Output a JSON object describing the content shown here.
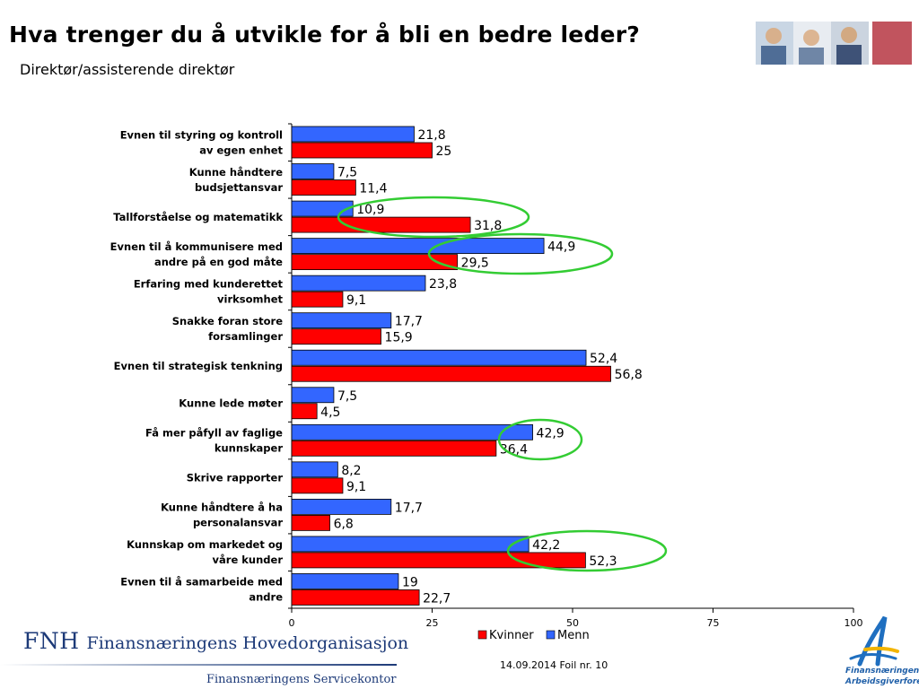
{
  "header": {
    "title": "Hva trenger du å utvikle for å bli en bedre leder?",
    "subtitle": "Direktør/assisterende direktør"
  },
  "chart_data": {
    "type": "bar",
    "orientation": "horizontal",
    "categories": [
      [
        "Evnen til styring og kontroll",
        "av egen enhet"
      ],
      [
        "Kunne håndtere",
        "budsjettansvar"
      ],
      [
        "Tallforståelse og matematikk"
      ],
      [
        "Evnen til å kommunisere med",
        "andre på en god måte"
      ],
      [
        "Erfaring med kunderettet",
        "virksomhet"
      ],
      [
        "Snakke foran store",
        "forsamlinger"
      ],
      [
        "Evnen til strategisk tenkning"
      ],
      [
        "Kunne lede møter"
      ],
      [
        "Få mer påfyll av faglige",
        "kunnskaper"
      ],
      [
        "Skrive rapporter"
      ],
      [
        "Kunne håndtere å ha",
        "personalansvar"
      ],
      [
        "Kunnskap om markedet og",
        "våre kunder"
      ],
      [
        "Evnen til å samarbeide med",
        "andre"
      ]
    ],
    "series": [
      {
        "name": "Menn",
        "color": "#3366ff",
        "values": [
          21.8,
          7.5,
          10.9,
          44.9,
          23.8,
          17.7,
          52.4,
          7.5,
          42.9,
          8.2,
          17.7,
          42.2,
          19
        ],
        "labels": [
          "21,8",
          "7,5",
          "10,9",
          "44,9",
          "23,8",
          "17,7",
          "52,4",
          "7,5",
          "42,9",
          "8,2",
          "17,7",
          "42,2",
          "19"
        ]
      },
      {
        "name": "Kvinner",
        "color": "#ff0000",
        "values": [
          25,
          11.4,
          31.8,
          29.5,
          9.1,
          15.9,
          56.8,
          4.5,
          36.4,
          9.1,
          6.8,
          52.3,
          22.7
        ],
        "labels": [
          "25",
          "11,4",
          "31,8",
          "29,5",
          "9,1",
          "15,9",
          "56,8",
          "4,5",
          "36,4",
          "9,1",
          "6,8",
          "52,3",
          "22,7"
        ]
      }
    ],
    "xlim": [
      0,
      100
    ],
    "xticks": [
      0,
      25,
      50,
      75,
      100
    ],
    "xtick_labels": [
      "0",
      "25",
      "50",
      "75",
      "100"
    ],
    "legend": {
      "position": "bottom",
      "entries": [
        "Kvinner",
        "Menn"
      ]
    },
    "highlight_color": "#33cc33",
    "highlighted_categories": [
      2,
      3,
      8,
      11
    ]
  },
  "footer": {
    "date_slide": "14.09.2014 Foil nr. 10",
    "fnh_abbr": "FNH",
    "fnh_name": "Finansnæringens Hovedorganisasjon",
    "service_office": "Finansnæringens Servicekontor",
    "fa_logo_lines": [
      "Finansnæringens",
      "Arbeidsgiverforening"
    ]
  }
}
